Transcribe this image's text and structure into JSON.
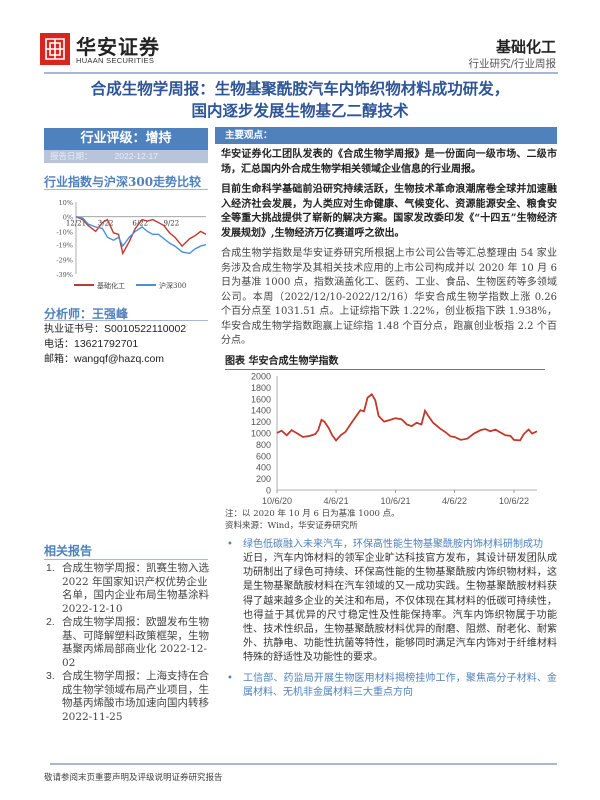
{
  "header": {
    "logo_cn": "华安证券",
    "logo_en": "HUAAN SECURITIES",
    "sector": "基础化工",
    "doc_type": "行业研究/行业周报"
  },
  "title": {
    "line1": "合成生物学周报：生物基聚酰胺汽车内饰织物材料成功研发，",
    "line2": "国内逐步发展生物基乙二醇技术"
  },
  "rating": {
    "label": "行业评级：增持",
    "date_label": "报告日期：",
    "date": "2022-12-17"
  },
  "comparison": {
    "title": "行业指数与沪深300走势比较",
    "chart_data": {
      "type": "line",
      "y_ticks": [
        "10%",
        "0%",
        "-10%",
        "-19%",
        "-29%",
        "-39%"
      ],
      "ylim": [
        -39,
        10
      ],
      "x_ticks": [
        "12/21",
        "3/22",
        "6/22",
        "9/22"
      ],
      "x": [
        "2021-12-17",
        "2022-01-05",
        "2022-01-20",
        "2022-02-10",
        "2022-03-01",
        "2022-03-15",
        "2022-04-01",
        "2022-04-15",
        "2022-04-27",
        "2022-05-15",
        "2022-06-01",
        "2022-06-20",
        "2022-07-05",
        "2022-07-20",
        "2022-08-05",
        "2022-08-20",
        "2022-09-05",
        "2022-09-20",
        "2022-10-10",
        "2022-10-31",
        "2022-11-15",
        "2022-12-01",
        "2022-12-16"
      ],
      "series": [
        {
          "name": "基础化工",
          "color": "#c0392b",
          "values": [
            0,
            -2,
            -6,
            -10,
            -4,
            -2,
            -11,
            -12,
            -25,
            -17,
            -8,
            -2,
            -3,
            -2,
            -4,
            -6,
            -11,
            -14,
            -20,
            -15,
            -13,
            -10,
            -12
          ]
        },
        {
          "name": "沪深300",
          "color": "#4a90d9",
          "values": [
            0,
            -1,
            -5,
            -7,
            -8,
            -14,
            -16,
            -14,
            -20,
            -14,
            -10,
            -7,
            -10,
            -12,
            -12,
            -15,
            -18,
            -20,
            -24,
            -25,
            -22,
            -20,
            -19
          ]
        }
      ]
    }
  },
  "analyst": {
    "title": "分析师：王强峰",
    "license_label": "执业证书号：",
    "license": "S0010522110002",
    "phone_label": "电话：",
    "phone": "13621792701",
    "email_label": "邮箱：",
    "email": "wangqf@hazq.com"
  },
  "related": {
    "title": "相关报告",
    "items": [
      {
        "n": "1.",
        "text": "合成生物学周报：凯赛生物入选 2022 年国家知识产权优势企业名单，国内企业布局生物基涂料 2022-12-10"
      },
      {
        "n": "2.",
        "text": "合成生物学周报：欧盟发布生物基、可降解塑料政策框架，生物基聚丙烯局部商业化 2022-12-02"
      },
      {
        "n": "3.",
        "text": "合成生物学周报：上海支持在合成生物学领域布局产业项目，生物基丙烯酸市场加速向国内转移 2022-11-25"
      }
    ]
  },
  "main": {
    "key_points_label": "主要观点：",
    "p1": "华安证券化工团队发表的《合成生物学周报》是一份面向一级市场、二级市场，汇总国内外合成生物学相关领域企业信息的行业周报。",
    "p2": "目前生命科学基础前沿研究持续活跃，生物技术革命浪潮席卷全球并加速融入经济社会发展，为人类应对生命健康、气候变化、资源能源安全、粮食安全等重大挑战提供了崭新的解决方案。国家发改委印发《“十四五”生物经济发展规划》,生物经济万亿赛道呼之欲出。",
    "p3": "合成生物学指数是华安证券研究所根据上市公司公告等汇总整理由 54 家业务涉及合成生物学及其相关技术应用的上市公司构成并以 2020 年 10 月 6 日为基准 1000 点，指数涵盖化工、医药、工业、食品、生物医药等多领域公司。本周（2022/12/10-2022/12/16）华安合成生物学指数上涨 0.26 个百分点至 1031.51 点。上证综指下跌 1.22%，创业板指下跌 1.938%，华安合成生物学指数跑赢上证综指 1.48 个百分点，跑赢创业板指 2.2 个百分点。",
    "chart_title": "图表 华安合成生物学指数",
    "chart_data": {
      "type": "line",
      "y_ticks": [
        0,
        200,
        400,
        600,
        800,
        1000,
        1200,
        1400,
        1600,
        1800,
        2000
      ],
      "ylim": [
        0,
        2000
      ],
      "x_ticks": [
        "10/6/20",
        "4/6/21",
        "10/6/21",
        "4/6/22",
        "10/6/22"
      ],
      "color": "#c0392b",
      "x": [
        "2020-10-06",
        "2020-10-20",
        "2020-11-05",
        "2020-11-20",
        "2020-12-05",
        "2020-12-25",
        "2021-01-15",
        "2021-02-01",
        "2021-02-10",
        "2021-02-20",
        "2021-03-01",
        "2021-03-15",
        "2021-03-25",
        "2021-04-06",
        "2021-04-20",
        "2021-05-05",
        "2021-05-20",
        "2021-06-05",
        "2021-06-20",
        "2021-07-01",
        "2021-07-12",
        "2021-07-25",
        "2021-08-05",
        "2021-08-15",
        "2021-09-01",
        "2021-09-20",
        "2021-10-06",
        "2021-10-25",
        "2021-11-10",
        "2021-11-25",
        "2021-12-10",
        "2021-12-25",
        "2022-01-05",
        "2022-01-15",
        "2022-01-30",
        "2022-02-20",
        "2022-03-10",
        "2022-03-25",
        "2022-04-06",
        "2022-04-25",
        "2022-05-15",
        "2022-06-05",
        "2022-06-25",
        "2022-07-10",
        "2022-07-25",
        "2022-08-10",
        "2022-08-25",
        "2022-09-10",
        "2022-09-25",
        "2022-10-06",
        "2022-10-25",
        "2022-11-05",
        "2022-11-20",
        "2022-12-01",
        "2022-12-16"
      ],
      "values": [
        1000,
        1040,
        960,
        1050,
        1000,
        930,
        950,
        980,
        1050,
        1230,
        1200,
        1080,
        960,
        870,
        960,
        1020,
        1150,
        1280,
        1400,
        1380,
        1620,
        1680,
        1570,
        1300,
        1200,
        1230,
        1260,
        1240,
        1150,
        1120,
        1180,
        1150,
        1390,
        1300,
        1180,
        1080,
        1010,
        940,
        930,
        880,
        900,
        990,
        1050,
        1070,
        1030,
        1060,
        1010,
        960,
        950,
        880,
        870,
        980,
        1060,
        990,
        1030
      ]
    },
    "note": "注：以 2020 年 10 月 6 日为基准 1000 点。",
    "source": "资料来源：Wind，华安证券研究所",
    "b1_title": "绿色低碳融入未来汽车，环保高性能生物基聚酰胺内饰材料研制成功",
    "b1_text": "近日，汽车内饰材料的领军企业旷达科技官方发布，其设计研发团队成功研制出了绿色可持续、环保高性能的生物基聚酰胺内饰织物材料，这是生物基聚酰胺材料在汽车领域的又一成功实践。生物基聚酰胺材料获得了越来越多企业的关注和布局，不仅体现在其材料的低碳可持续性，也得益于其优异的尺寸稳定性及性能保持率。汽车内饰织物属于功能性、技术性织品，生物基聚酰胺材料优异的耐磨、阻燃、耐老化、耐紫外、抗静电、功能性抗菌等特性，能够同时满足汽车内饰对于纤维材料特殊的舒适性及功能性的要求。",
    "b2_title": "工信部、药监局开展生物医用材料揭榜挂帅工作，聚焦高分子材料、金属材料、无机非金属材料三大重点方向"
  },
  "footer": "敬请参阅末页重要声明及评级说明证券研究报告"
}
